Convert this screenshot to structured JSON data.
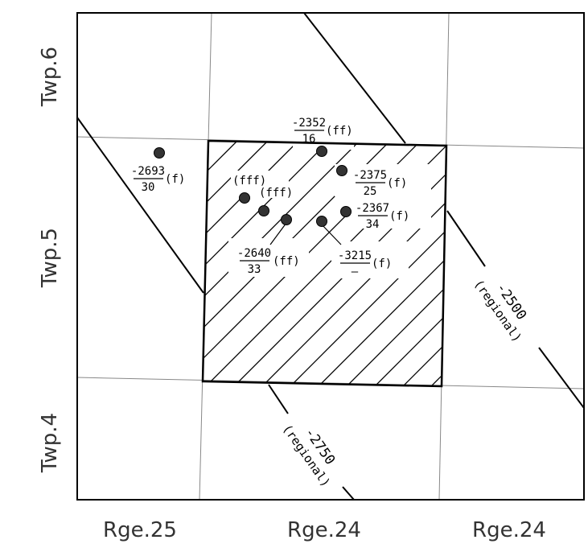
{
  "township_labels": [
    "Twp.6",
    "Twp.5",
    "Twp.4"
  ],
  "range_labels": [
    "Rge.25",
    "Rge.24",
    "Rge.24"
  ],
  "contours": [
    {
      "value": "-2500",
      "note": "(regional)"
    },
    {
      "value": "-2750",
      "note": "(regional)"
    }
  ],
  "wells": [
    {
      "top": "-2693",
      "bottom": "30",
      "code": "(f)"
    },
    {
      "top": "-2352",
      "bottom": "16",
      "code": "(ff)"
    },
    {
      "top": "-2375",
      "bottom": "25",
      "code": "(f)"
    },
    {
      "top": "-2367",
      "bottom": "34",
      "code": "(f)"
    },
    {
      "code": "(fff)"
    },
    {
      "code": "(fff)"
    },
    {
      "top": "-2640",
      "bottom": "33",
      "code": "(ff)"
    },
    {
      "top": "-3215",
      "bottom": "–",
      "code": "(f)"
    }
  ],
  "colors": {
    "line": "#000000",
    "grid": "#888888",
    "well_fill": "#333333",
    "text": "#333333"
  }
}
